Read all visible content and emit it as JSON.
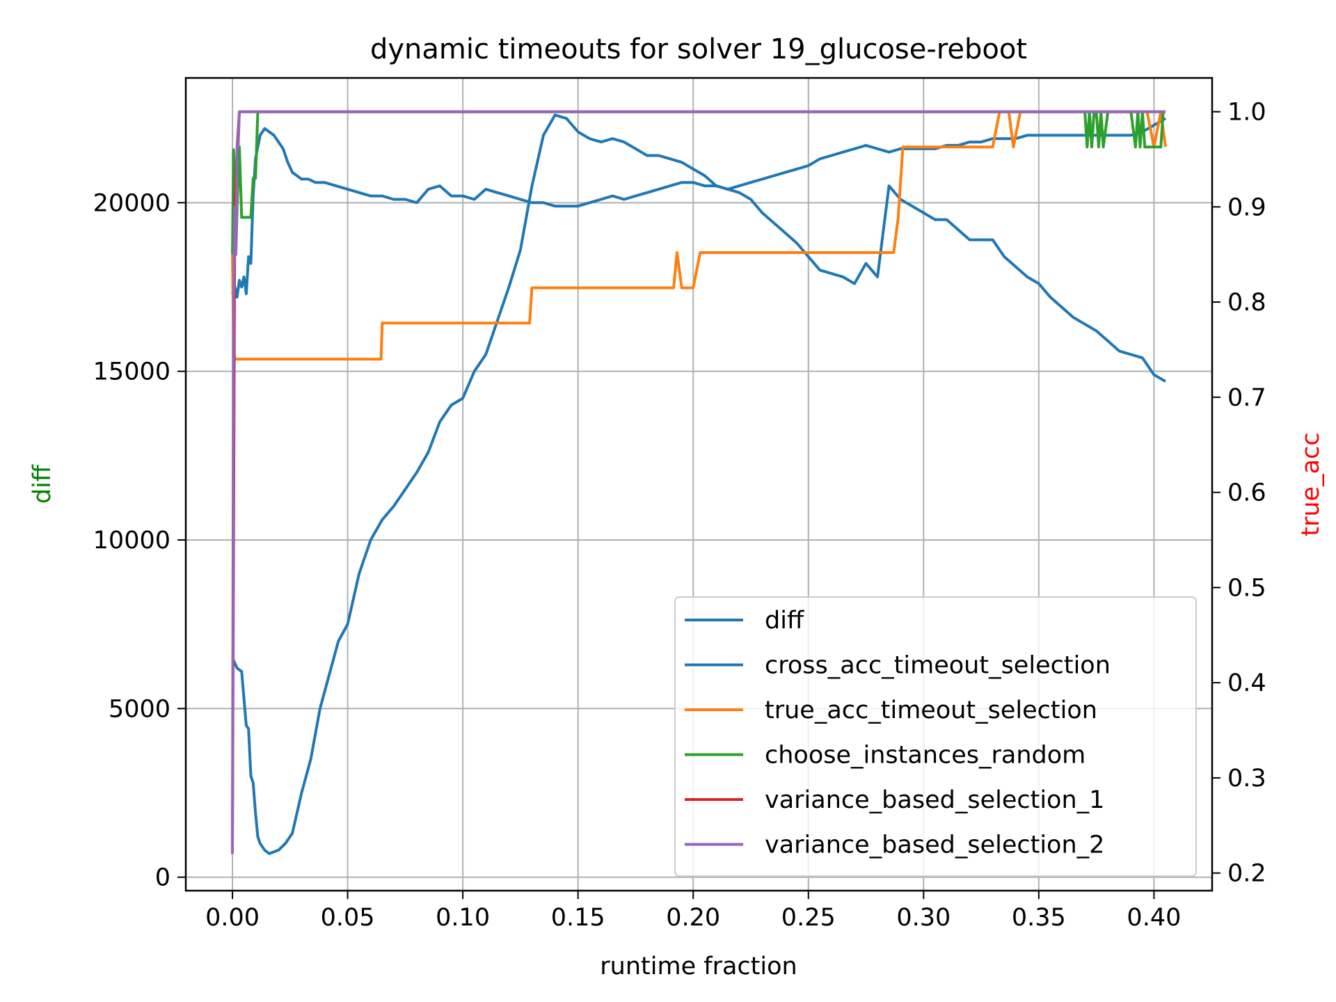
{
  "chart_data": {
    "type": "line",
    "title": "dynamic timeouts for solver 19_glucose-reboot",
    "xlabel": "runtime fraction",
    "ylabel_left": "diff",
    "ylabel_right": "true_acc",
    "ylabel_left_color": "#008000",
    "ylabel_right_color": "#ff0000",
    "xlim": [
      -0.02025,
      0.42525
    ],
    "ylim_left": [
      -400,
      23700
    ],
    "ylim_right": [
      0.1815,
      1.0355
    ],
    "xticks": [
      0.0,
      0.05,
      0.1,
      0.15,
      0.2,
      0.25,
      0.3,
      0.35,
      0.4
    ],
    "xtick_labels": [
      "0.00",
      "0.05",
      "0.10",
      "0.15",
      "0.20",
      "0.25",
      "0.30",
      "0.35",
      "0.40"
    ],
    "yticks_left": [
      0,
      5000,
      10000,
      15000,
      20000
    ],
    "ytick_labels_left": [
      "0",
      "5000",
      "10000",
      "15000",
      "20000"
    ],
    "yticks_right": [
      0.2,
      0.3,
      0.4,
      0.5,
      0.6,
      0.7,
      0.8,
      0.9,
      1.0
    ],
    "ytick_labels_right": [
      "0.2",
      "0.3",
      "0.4",
      "0.5",
      "0.6",
      "0.7",
      "0.8",
      "0.9",
      "1.0"
    ],
    "grid": true,
    "legend_position": "lower-right",
    "series": [
      {
        "name": "diff",
        "axis": "left",
        "color": "#1f77b4",
        "x": [
          0.0,
          0.001,
          0.002,
          0.003,
          0.004,
          0.005,
          0.006,
          0.007,
          0.008,
          0.009,
          0.01,
          0.012,
          0.014,
          0.016,
          0.018,
          0.02,
          0.022,
          0.024,
          0.026,
          0.028,
          0.03,
          0.033,
          0.036,
          0.04,
          0.045,
          0.05,
          0.055,
          0.06,
          0.065,
          0.07,
          0.075,
          0.08,
          0.085,
          0.09,
          0.095,
          0.1,
          0.105,
          0.11,
          0.115,
          0.12,
          0.125,
          0.13,
          0.135,
          0.14,
          0.145,
          0.15,
          0.155,
          0.16,
          0.165,
          0.17,
          0.175,
          0.18,
          0.185,
          0.19,
          0.195,
          0.2,
          0.205,
          0.21,
          0.215,
          0.22,
          0.225,
          0.23,
          0.235,
          0.24,
          0.245,
          0.25,
          0.255,
          0.26,
          0.265,
          0.27,
          0.275,
          0.28,
          0.285,
          0.29,
          0.295,
          0.3,
          0.305,
          0.31,
          0.315,
          0.32,
          0.325,
          0.33,
          0.335,
          0.34,
          0.345,
          0.35,
          0.355,
          0.36,
          0.365,
          0.37,
          0.375,
          0.38,
          0.385,
          0.39,
          0.395,
          0.4,
          0.405
        ],
        "values": [
          17300,
          17500,
          17200,
          17700,
          17500,
          17800,
          17300,
          18400,
          18200,
          20200,
          21300,
          22000,
          22200,
          22100,
          22000,
          21800,
          21600,
          21200,
          20900,
          20800,
          20700,
          20700,
          20600,
          20600,
          20500,
          20400,
          20300,
          20200,
          20200,
          20100,
          20100,
          20000,
          20400,
          20500,
          20200,
          20200,
          20100,
          20400,
          20300,
          20200,
          20100,
          20000,
          20000,
          19900,
          19900,
          19900,
          20000,
          20100,
          20200,
          20100,
          20200,
          20300,
          20400,
          20500,
          20600,
          20600,
          20500,
          20500,
          20400,
          20500,
          20600,
          20700,
          20800,
          20900,
          21000,
          21100,
          21300,
          21400,
          21500,
          21600,
          21700,
          21600,
          21500,
          21600,
          21600,
          21600,
          21600,
          21700,
          21700,
          21800,
          21800,
          21900,
          21900,
          21900,
          22000,
          22000,
          22000,
          22000,
          22000,
          22000,
          22000,
          22000,
          22000,
          22000,
          22100,
          22300,
          22500
        ]
      },
      {
        "name": "cross_acc_timeout_selection",
        "axis": "left",
        "color": "#1f77b4",
        "x": [
          0.0,
          0.002,
          0.004,
          0.006,
          0.007,
          0.008,
          0.009,
          0.01,
          0.011,
          0.012,
          0.014,
          0.016,
          0.018,
          0.02,
          0.023,
          0.026,
          0.03,
          0.034,
          0.038,
          0.042,
          0.046,
          0.05,
          0.055,
          0.06,
          0.065,
          0.07,
          0.075,
          0.08,
          0.085,
          0.09,
          0.095,
          0.1,
          0.105,
          0.11,
          0.115,
          0.12,
          0.125,
          0.13,
          0.135,
          0.14,
          0.145,
          0.15,
          0.155,
          0.16,
          0.165,
          0.17,
          0.175,
          0.18,
          0.185,
          0.19,
          0.195,
          0.2,
          0.205,
          0.21,
          0.215,
          0.22,
          0.225,
          0.23,
          0.235,
          0.24,
          0.245,
          0.25,
          0.255,
          0.26,
          0.265,
          0.27,
          0.275,
          0.28,
          0.285,
          0.29,
          0.295,
          0.3,
          0.305,
          0.31,
          0.315,
          0.32,
          0.325,
          0.33,
          0.335,
          0.34,
          0.345,
          0.35,
          0.355,
          0.36,
          0.365,
          0.37,
          0.375,
          0.38,
          0.385,
          0.39,
          0.395,
          0.4,
          0.405
        ],
        "values": [
          6500,
          6200,
          6100,
          4500,
          4400,
          3000,
          2800,
          1900,
          1200,
          1000,
          800,
          700,
          750,
          800,
          1000,
          1300,
          2500,
          3500,
          5000,
          6000,
          7000,
          7500,
          9000,
          10000,
          10600,
          11000,
          11500,
          12000,
          12600,
          13500,
          14000,
          14200,
          15000,
          15500,
          16500,
          17500,
          18600,
          20500,
          22000,
          22600,
          22500,
          22100,
          21900,
          21800,
          21900,
          21800,
          21600,
          21400,
          21400,
          21300,
          21200,
          21000,
          20800,
          20500,
          20400,
          20300,
          20100,
          19700,
          19400,
          19100,
          18800,
          18400,
          18000,
          17900,
          17800,
          17600,
          18200,
          17800,
          20500,
          20100,
          19900,
          19700,
          19500,
          19500,
          19200,
          18900,
          18900,
          18900,
          18400,
          18100,
          17800,
          17600,
          17200,
          16900,
          16600,
          16400,
          16200,
          15900,
          15600,
          15500,
          15400,
          14900,
          14700
        ]
      },
      {
        "name": "true_acc_timeout_selection",
        "axis": "right",
        "color": "#ff7f0e",
        "x": [
          0.0,
          0.0005,
          0.001,
          0.002,
          0.03,
          0.06,
          0.0645,
          0.065,
          0.066,
          0.1,
          0.129,
          0.13,
          0.131,
          0.16,
          0.19,
          0.1915,
          0.193,
          0.195,
          0.2,
          0.203,
          0.205,
          0.25,
          0.287,
          0.289,
          0.291,
          0.3,
          0.327,
          0.328,
          0.33,
          0.333,
          0.335,
          0.337,
          0.339,
          0.342,
          0.345,
          0.39,
          0.393,
          0.395,
          0.397,
          0.4,
          0.403,
          0.405
        ],
        "values": [
          0.85,
          0.75,
          0.74,
          0.74,
          0.74,
          0.74,
          0.74,
          0.778,
          0.778,
          0.778,
          0.778,
          0.815,
          0.815,
          0.815,
          0.815,
          0.815,
          0.852,
          0.815,
          0.815,
          0.852,
          0.852,
          0.852,
          0.852,
          0.889,
          0.963,
          0.963,
          0.963,
          0.963,
          0.963,
          1.0,
          1.0,
          1.0,
          0.963,
          1.0,
          1.0,
          1.0,
          1.0,
          1.0,
          1.0,
          0.963,
          1.0,
          0.963
        ]
      },
      {
        "name": "choose_instances_random",
        "axis": "right",
        "color": "#2ca02c",
        "x": [
          0.0,
          0.0005,
          0.001,
          0.0015,
          0.002,
          0.003,
          0.004,
          0.005,
          0.006,
          0.007,
          0.008,
          0.009,
          0.01,
          0.011,
          0.012,
          0.015,
          0.05,
          0.1,
          0.2,
          0.3,
          0.37,
          0.371,
          0.372,
          0.373,
          0.374,
          0.375,
          0.376,
          0.377,
          0.378,
          0.38,
          0.39,
          0.392,
          0.393,
          0.394,
          0.395,
          0.396,
          0.397,
          0.4,
          0.403,
          0.404,
          0.405
        ],
        "values": [
          0.85,
          0.96,
          0.9,
          0.85,
          0.9,
          0.963,
          0.889,
          0.889,
          0.889,
          0.889,
          0.889,
          0.93,
          0.93,
          1.0,
          1.0,
          1.0,
          1.0,
          1.0,
          1.0,
          1.0,
          1.0,
          0.963,
          1.0,
          0.963,
          1.0,
          1.0,
          0.963,
          1.0,
          0.963,
          1.0,
          1.0,
          0.963,
          1.0,
          0.963,
          1.0,
          0.963,
          0.963,
          0.963,
          0.963,
          1.0,
          1.0
        ]
      },
      {
        "name": "variance_based_selection_1",
        "axis": "right",
        "color": "#d62728",
        "x": [
          0.0,
          0.001,
          0.002,
          0.003,
          0.405
        ],
        "values": [
          0.22,
          0.9,
          0.96,
          1.0,
          1.0
        ]
      },
      {
        "name": "variance_based_selection_2",
        "axis": "right",
        "color": "#9467bd",
        "x": [
          0.0,
          0.0005,
          0.001,
          0.0015,
          0.002,
          0.0025,
          0.003,
          0.005,
          0.1,
          0.2,
          0.3,
          0.405
        ],
        "values": [
          0.22,
          0.8,
          0.9,
          0.85,
          0.963,
          0.963,
          1.0,
          1.0,
          1.0,
          1.0,
          1.0,
          1.0
        ]
      }
    ]
  }
}
